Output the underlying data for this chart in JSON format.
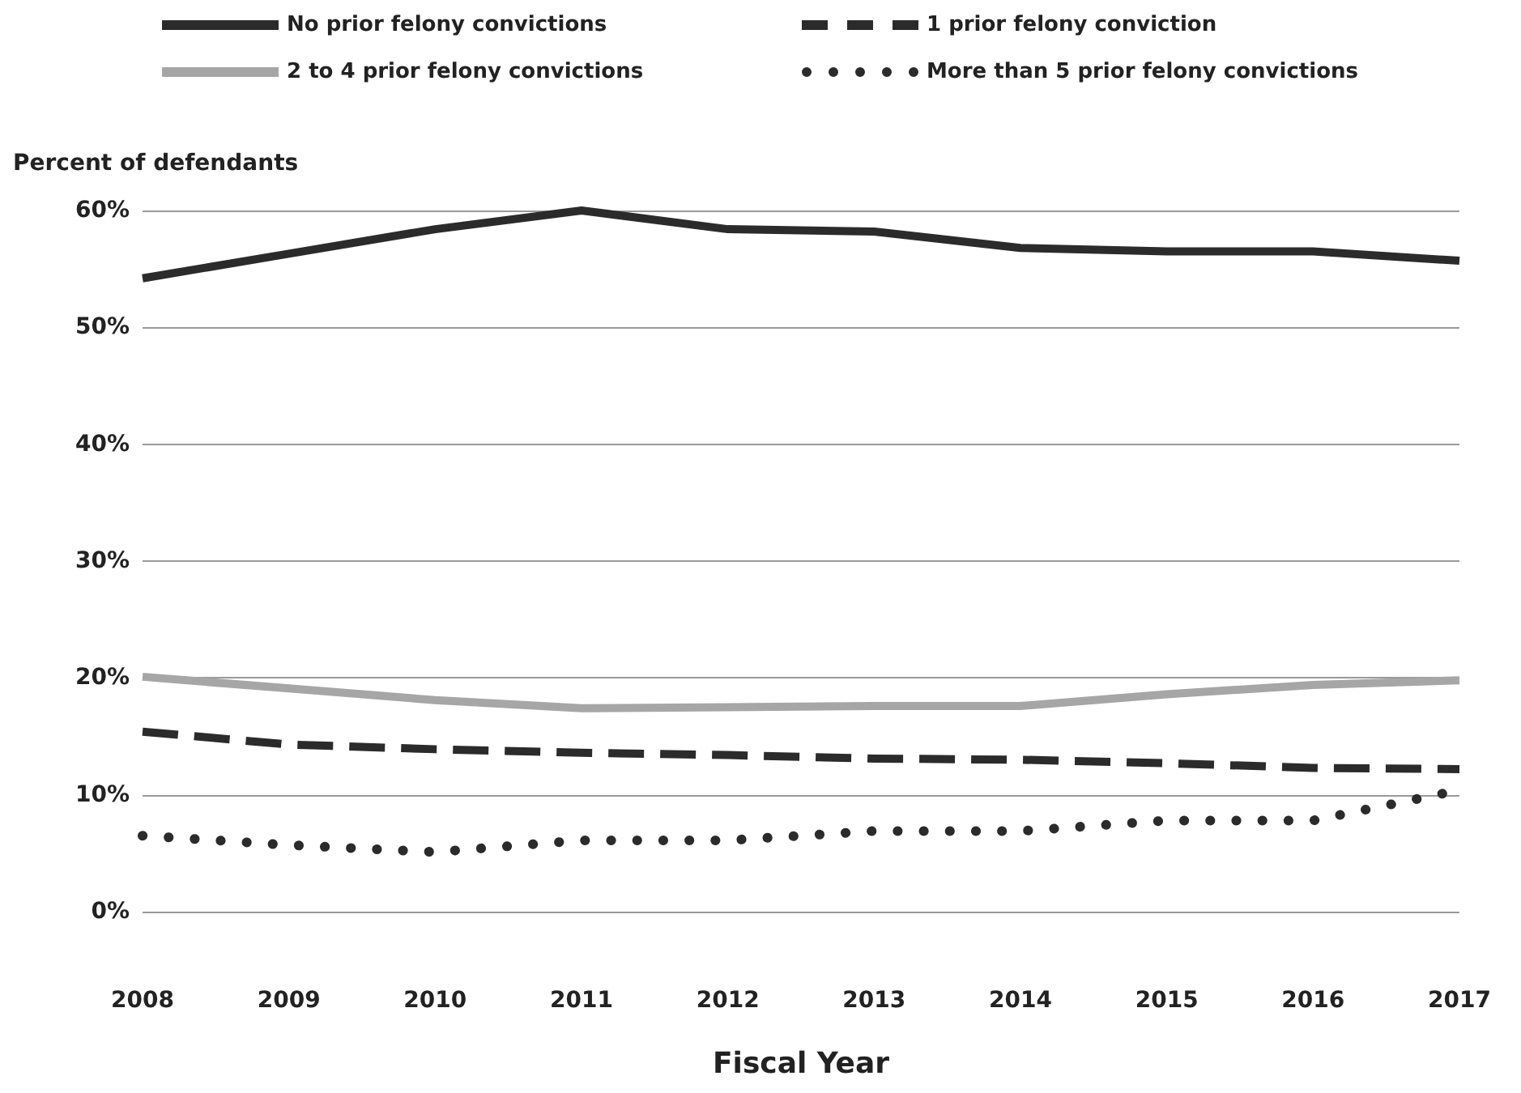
{
  "chart_data": {
    "type": "line",
    "xlabel": "Fiscal Year",
    "ylabel": "Percent of defendants",
    "categories": [
      "2008",
      "2009",
      "2010",
      "2011",
      "2012",
      "2013",
      "2014",
      "2015",
      "2016",
      "2017"
    ],
    "series": [
      {
        "name": "No prior felony convictions",
        "color": "#2b2b2b",
        "line_style": "solid",
        "values": [
          54.2,
          56.3,
          58.4,
          60.0,
          58.4,
          58.2,
          56.8,
          56.5,
          56.5,
          55.7
        ]
      },
      {
        "name": "1 prior felony conviction",
        "color": "#2b2b2b",
        "line_style": "dashed",
        "values": [
          15.4,
          14.3,
          13.9,
          13.6,
          13.4,
          13.1,
          13.0,
          12.7,
          12.3,
          12.2
        ]
      },
      {
        "name": "2 to 4 prior felony convictions",
        "color": "#a6a6a6",
        "line_style": "solid",
        "values": [
          20.1,
          19.1,
          18.1,
          17.4,
          17.5,
          17.6,
          17.6,
          18.6,
          19.4,
          19.8
        ]
      },
      {
        "name": "More than 5 prior felony convictions",
        "color": "#2b2b2b",
        "line_style": "dotted",
        "values": [
          6.5,
          5.7,
          5.1,
          6.1,
          6.1,
          6.9,
          6.9,
          7.8,
          7.8,
          10.4
        ]
      }
    ],
    "ylim": [
      0,
      60
    ],
    "yticks": [
      {
        "value": 0,
        "label": "0%"
      },
      {
        "value": 10,
        "label": "10%"
      },
      {
        "value": 20,
        "label": "20%"
      },
      {
        "value": 30,
        "label": "30%"
      },
      {
        "value": 40,
        "label": "40%"
      },
      {
        "value": 50,
        "label": "50%"
      },
      {
        "value": 60,
        "label": "60%"
      }
    ],
    "grid": "y",
    "legend": "top",
    "marker": "none"
  }
}
